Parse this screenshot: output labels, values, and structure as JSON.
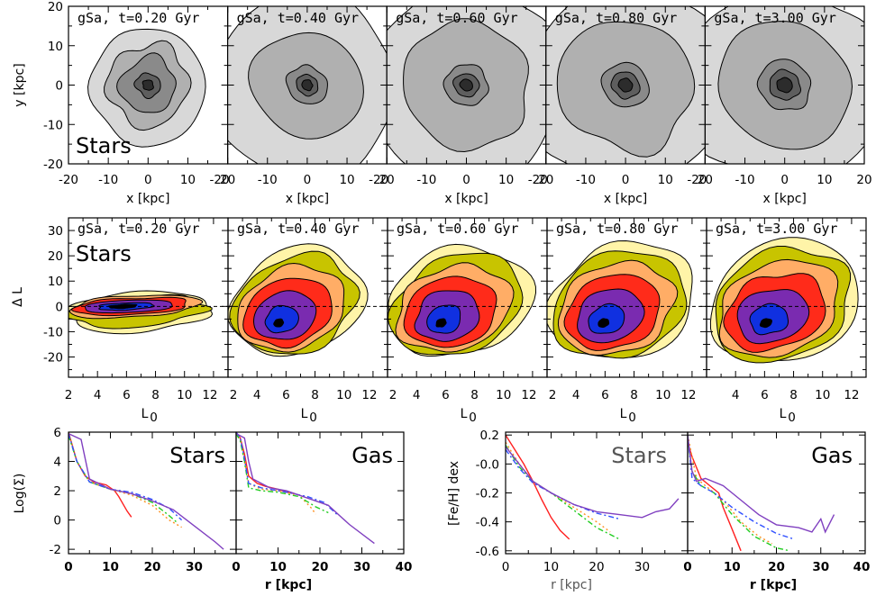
{
  "times": [
    "gSa, t=0.20 Gyr",
    "gSa, t=0.40 Gyr",
    "gSa, t=0.60 Gyr",
    "gSa, t=0.80 Gyr",
    "gSa, t=3.00 Gyr"
  ],
  "row1": {
    "xlabel": "x [kpc]",
    "ylabel": "y [kpc]",
    "tag": "Stars",
    "xticks_first": [
      "-20",
      "-10",
      "0",
      "10",
      "20"
    ],
    "xticks": [
      "-10",
      "0",
      "10",
      "20"
    ],
    "xticks_lead": "-20",
    "yticks": [
      "20",
      "10",
      "0",
      "-10",
      "-20"
    ],
    "fill_colors": [
      "#d8d8d8",
      "#b0b0b0",
      "#8a8a8a",
      "#5e5e5e",
      "#2c2c2c"
    ]
  },
  "row2": {
    "xlabel": "L",
    "xlabel_sub": "0",
    "ylabel": "Δ L",
    "tag": "Stars",
    "xticks_first": [
      "2",
      "4",
      "6",
      "8",
      "10",
      "12"
    ],
    "xticks_mid": [
      "2",
      "4",
      "6",
      "8",
      "10",
      "12"
    ],
    "xticks_last": [
      "4",
      "6",
      "8",
      "10",
      "12"
    ],
    "yticks": [
      "30",
      "20",
      "10",
      "0",
      "-10",
      "-20"
    ],
    "fill_colors": [
      "#fff4a8",
      "#c8c400",
      "#ffad66",
      "#ff2b1a",
      "#7a2bb0",
      "#1030e0",
      "#000000"
    ]
  },
  "row3": {
    "density": {
      "ylabel": "Log(Σ)",
      "xlabel": "r [kpc]",
      "yticks": [
        "6",
        "4",
        "2",
        "0",
        "-2"
      ],
      "xticks_left": [
        "0",
        "10",
        "20",
        "30"
      ],
      "xticks_right": [
        "0",
        "10",
        "20",
        "30",
        "40"
      ],
      "tag_stars": "Stars",
      "tag_gas": "Gas"
    },
    "metal": {
      "ylabel": "[Fe/H] dex",
      "xlabel": "r [kpc]",
      "yticks": [
        "0.2",
        "-0.0",
        "-0.2",
        "-0.4",
        "-0.6"
      ],
      "xticks_left": [
        "0",
        "10",
        "20",
        "30"
      ],
      "xticks_right": [
        "0",
        "10",
        "20",
        "30",
        "40"
      ],
      "tag_stars": "Stars",
      "tag_gas": "Gas"
    }
  },
  "chart_data": [
    {
      "type": "heatmap",
      "panel": "face-on stellar surface density maps",
      "xlabel": "x [kpc]",
      "ylabel": "y [kpc]",
      "xlim": [
        -20,
        20
      ],
      "ylim": [
        -20,
        20
      ],
      "times_gyr": [
        0.2,
        0.4,
        0.6,
        0.8,
        3.0
      ]
    },
    {
      "type": "heatmap",
      "panel": "stellar angular momentum change vs initial angular momentum",
      "xlabel": "L0",
      "ylabel": "Δ L",
      "xlim": [
        2,
        13
      ],
      "ylim": [
        -28,
        35
      ],
      "times_gyr": [
        0.2,
        0.4,
        0.6,
        0.8,
        3.0
      ]
    },
    {
      "type": "line",
      "panel": "Log surface density profiles",
      "xlabel": "r [kpc]",
      "ylabel": "Log(Σ)",
      "ylim": [
        -2.3,
        6
      ],
      "series": [
        {
          "color": "#ff2020",
          "dash": "solid",
          "stars": [
            [
              0,
              6
            ],
            [
              1,
              5
            ],
            [
              2,
              4
            ],
            [
              4,
              3
            ],
            [
              6,
              2.6
            ],
            [
              9,
              2.4
            ],
            [
              11,
              2.0
            ],
            [
              12,
              1.6
            ],
            [
              14,
              0.6
            ],
            [
              15,
              0.2
            ]
          ],
          "gas": [
            [
              0,
              6
            ],
            [
              1,
              5.6
            ],
            [
              2,
              4.5
            ],
            [
              3,
              3
            ],
            [
              5,
              2.5
            ],
            [
              7,
              2.3
            ],
            [
              10,
              2.1
            ],
            [
              12,
              1.9
            ],
            [
              14,
              1.8
            ]
          ]
        },
        {
          "color": "#ff9020",
          "dash": "dot",
          "stars": [
            [
              0,
              6
            ],
            [
              2,
              4
            ],
            [
              5,
              2.6
            ],
            [
              10,
              2.1
            ],
            [
              15,
              1.7
            ],
            [
              20,
              1.0
            ],
            [
              24,
              0
            ],
            [
              27,
              -0.5
            ]
          ],
          "gas": [
            [
              0,
              6
            ],
            [
              1,
              5.5
            ],
            [
              2,
              4
            ],
            [
              3,
              2.5
            ],
            [
              6,
              2.1
            ],
            [
              10,
              2.0
            ],
            [
              15,
              1.7
            ],
            [
              18,
              0.8
            ],
            [
              19,
              0.4
            ]
          ]
        },
        {
          "color": "#20cc20",
          "dash": "dashdot",
          "stars": [
            [
              0,
              5.8
            ],
            [
              2,
              4
            ],
            [
              5,
              2.6
            ],
            [
              10,
              2.1
            ],
            [
              15,
              1.8
            ],
            [
              20,
              1.2
            ],
            [
              24,
              0.3
            ],
            [
              26,
              -0.2
            ]
          ],
          "gas": [
            [
              0,
              5.9
            ],
            [
              1,
              5.4
            ],
            [
              2,
              4
            ],
            [
              3,
              2.2
            ],
            [
              6,
              2.0
            ],
            [
              10,
              1.9
            ],
            [
              15,
              1.6
            ],
            [
              19,
              0.9
            ],
            [
              22,
              0.5
            ]
          ]
        },
        {
          "color": "#3050ff",
          "dash": "dashdot",
          "stars": [
            [
              0,
              5.9
            ],
            [
              2,
              4
            ],
            [
              5,
              2.6
            ],
            [
              10,
              2.1
            ],
            [
              15,
              1.9
            ],
            [
              20,
              1.4
            ],
            [
              24,
              0.8
            ],
            [
              27,
              0
            ]
          ],
          "gas": [
            [
              0,
              6
            ],
            [
              1,
              5.6
            ],
            [
              2,
              4.2
            ],
            [
              3,
              2.5
            ],
            [
              6,
              2.2
            ],
            [
              12,
              1.9
            ],
            [
              17,
              1.6
            ],
            [
              21,
              1.2
            ],
            [
              24,
              0.4
            ]
          ]
        },
        {
          "color": "#8040c0",
          "dash": "solid",
          "stars": [
            [
              0,
              5.9
            ],
            [
              3,
              5.5
            ],
            [
              5,
              2.8
            ],
            [
              10,
              2.1
            ],
            [
              15,
              1.8
            ],
            [
              20,
              1.3
            ],
            [
              25,
              0.7
            ],
            [
              30,
              -0.4
            ],
            [
              35,
              -1.5
            ],
            [
              37,
              -2.0
            ]
          ],
          "gas": [
            [
              0,
              5.9
            ],
            [
              2,
              5.6
            ],
            [
              3,
              4
            ],
            [
              4,
              2.8
            ],
            [
              8,
              2.2
            ],
            [
              12,
              2.0
            ],
            [
              17,
              1.5
            ],
            [
              22,
              1.0
            ],
            [
              27,
              -0.3
            ],
            [
              33,
              -1.6
            ]
          ]
        }
      ]
    },
    {
      "type": "line",
      "panel": "metallicity gradients",
      "xlabel": "r [kpc]",
      "ylabel": "[Fe/H] dex",
      "ylim": [
        -0.62,
        0.22
      ],
      "series": [
        {
          "color": "#ff2020",
          "dash": "solid",
          "stars": [
            [
              0,
              0.2
            ],
            [
              2,
              0.1
            ],
            [
              4,
              0
            ],
            [
              6,
              -0.12
            ],
            [
              8,
              -0.25
            ],
            [
              10,
              -0.37
            ],
            [
              12,
              -0.46
            ],
            [
              14,
              -0.52
            ]
          ],
          "gas": [
            [
              0,
              0.15
            ],
            [
              1,
              0.05
            ],
            [
              3,
              -0.1
            ],
            [
              5,
              -0.15
            ],
            [
              7,
              -0.2
            ],
            [
              8,
              -0.3
            ],
            [
              10,
              -0.45
            ],
            [
              12,
              -0.6
            ]
          ]
        },
        {
          "color": "#ff9020",
          "dash": "dot",
          "stars": [
            [
              0,
              0.15
            ],
            [
              3,
              0
            ],
            [
              6,
              -0.12
            ],
            [
              10,
              -0.2
            ],
            [
              15,
              -0.3
            ],
            [
              20,
              -0.4
            ],
            [
              23,
              -0.47
            ]
          ],
          "gas": [
            [
              0,
              0.2
            ],
            [
              2,
              -0.1
            ],
            [
              4,
              -0.15
            ],
            [
              8,
              -0.25
            ],
            [
              12,
              -0.4
            ],
            [
              16,
              -0.5
            ],
            [
              19,
              -0.55
            ]
          ]
        },
        {
          "color": "#20cc20",
          "dash": "dashdot",
          "stars": [
            [
              0,
              0.13
            ],
            [
              3,
              -0.02
            ],
            [
              6,
              -0.12
            ],
            [
              10,
              -0.2
            ],
            [
              15,
              -0.32
            ],
            [
              20,
              -0.44
            ],
            [
              25,
              -0.52
            ]
          ],
          "gas": [
            [
              0,
              0.18
            ],
            [
              1,
              -0.05
            ],
            [
              3,
              -0.15
            ],
            [
              6,
              -0.2
            ],
            [
              10,
              -0.35
            ],
            [
              15,
              -0.5
            ],
            [
              20,
              -0.58
            ],
            [
              23,
              -0.6
            ]
          ]
        },
        {
          "color": "#3050ff",
          "dash": "dashdot",
          "stars": [
            [
              0,
              0.1
            ],
            [
              3,
              -0.03
            ],
            [
              6,
              -0.13
            ],
            [
              10,
              -0.2
            ],
            [
              15,
              -0.28
            ],
            [
              20,
              -0.34
            ],
            [
              25,
              -0.38
            ]
          ],
          "gas": [
            [
              0,
              0.2
            ],
            [
              1,
              -0.1
            ],
            [
              3,
              -0.15
            ],
            [
              6,
              -0.2
            ],
            [
              10,
              -0.3
            ],
            [
              15,
              -0.4
            ],
            [
              20,
              -0.48
            ],
            [
              24,
              -0.52
            ]
          ]
        },
        {
          "color": "#8040c0",
          "dash": "solid",
          "stars": [
            [
              0,
              0.12
            ],
            [
              3,
              0
            ],
            [
              6,
              -0.12
            ],
            [
              10,
              -0.2
            ],
            [
              15,
              -0.28
            ],
            [
              20,
              -0.33
            ],
            [
              25,
              -0.35
            ],
            [
              30,
              -0.37
            ],
            [
              33,
              -0.33
            ],
            [
              36,
              -0.31
            ],
            [
              38,
              -0.24
            ]
          ],
          "gas": [
            [
              0,
              0.2
            ],
            [
              1,
              -0.05
            ],
            [
              2,
              -0.12
            ],
            [
              4,
              -0.1
            ],
            [
              8,
              -0.15
            ],
            [
              12,
              -0.25
            ],
            [
              16,
              -0.35
            ],
            [
              20,
              -0.42
            ],
            [
              25,
              -0.44
            ],
            [
              28,
              -0.47
            ],
            [
              30,
              -0.38
            ],
            [
              31,
              -0.47
            ],
            [
              33,
              -0.35
            ]
          ]
        }
      ]
    }
  ]
}
